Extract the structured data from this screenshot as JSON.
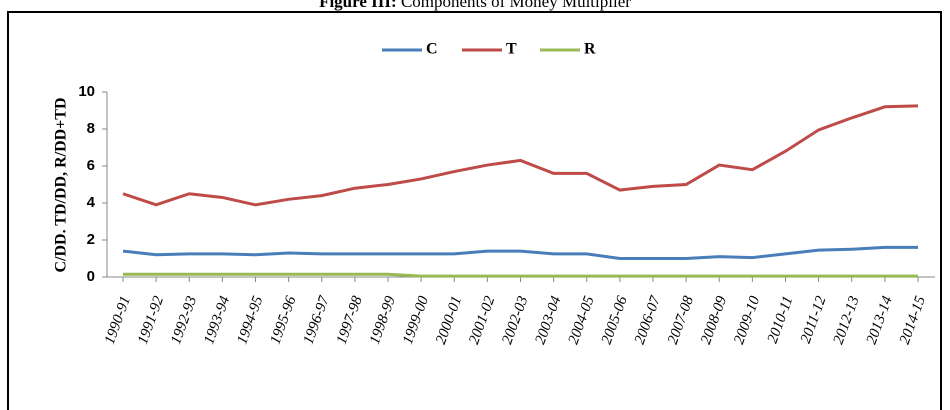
{
  "chart_data": {
    "type": "line",
    "title_label": "Figure III:",
    "title": "Components of Money Multiplier",
    "ylabel": "C/DD.  TD/DD, R/DD+TD",
    "categories": [
      "1990-91",
      "1991-92",
      "1992-93",
      "1993-94",
      "1994-95",
      "1995-96",
      "1996-97",
      "1997-98",
      "1998-99",
      "1999-00",
      "2000-01",
      "2001-02",
      "2002-03",
      "2003-04",
      "2004-05",
      "2005-06",
      "2006-07",
      "2007-08",
      "2008-09",
      "2009-10",
      "2010-11",
      "2011-12",
      "2012-13",
      "2013-14",
      "2014-15"
    ],
    "series": [
      {
        "name": "C",
        "color": "#4a7ebb",
        "values": [
          1.4,
          1.2,
          1.25,
          1.25,
          1.2,
          1.3,
          1.25,
          1.25,
          1.25,
          1.25,
          1.25,
          1.4,
          1.4,
          1.25,
          1.25,
          1.0,
          1.0,
          1.0,
          1.1,
          1.05,
          1.25,
          1.45,
          1.5,
          1.6,
          1.6
        ]
      },
      {
        "name": "T",
        "color": "#be4b48",
        "values": [
          4.5,
          3.9,
          4.5,
          4.3,
          3.9,
          4.2,
          4.4,
          4.8,
          5.0,
          5.3,
          5.7,
          6.05,
          6.3,
          5.6,
          5.6,
          4.7,
          4.9,
          5.0,
          6.05,
          5.8,
          6.8,
          7.95,
          8.6,
          9.2,
          9.25
        ]
      },
      {
        "name": "R",
        "color": "#98b954",
        "values": [
          0.15,
          0.15,
          0.15,
          0.15,
          0.15,
          0.15,
          0.15,
          0.15,
          0.15,
          0.05,
          0.05,
          0.05,
          0.05,
          0.05,
          0.05,
          0.05,
          0.05,
          0.05,
          0.05,
          0.05,
          0.05,
          0.05,
          0.05,
          0.05,
          0.05
        ]
      }
    ],
    "ylim": [
      0,
      10
    ],
    "yticks": [
      0,
      2,
      4,
      6,
      8,
      10
    ],
    "grid": false,
    "legend": "top"
  }
}
